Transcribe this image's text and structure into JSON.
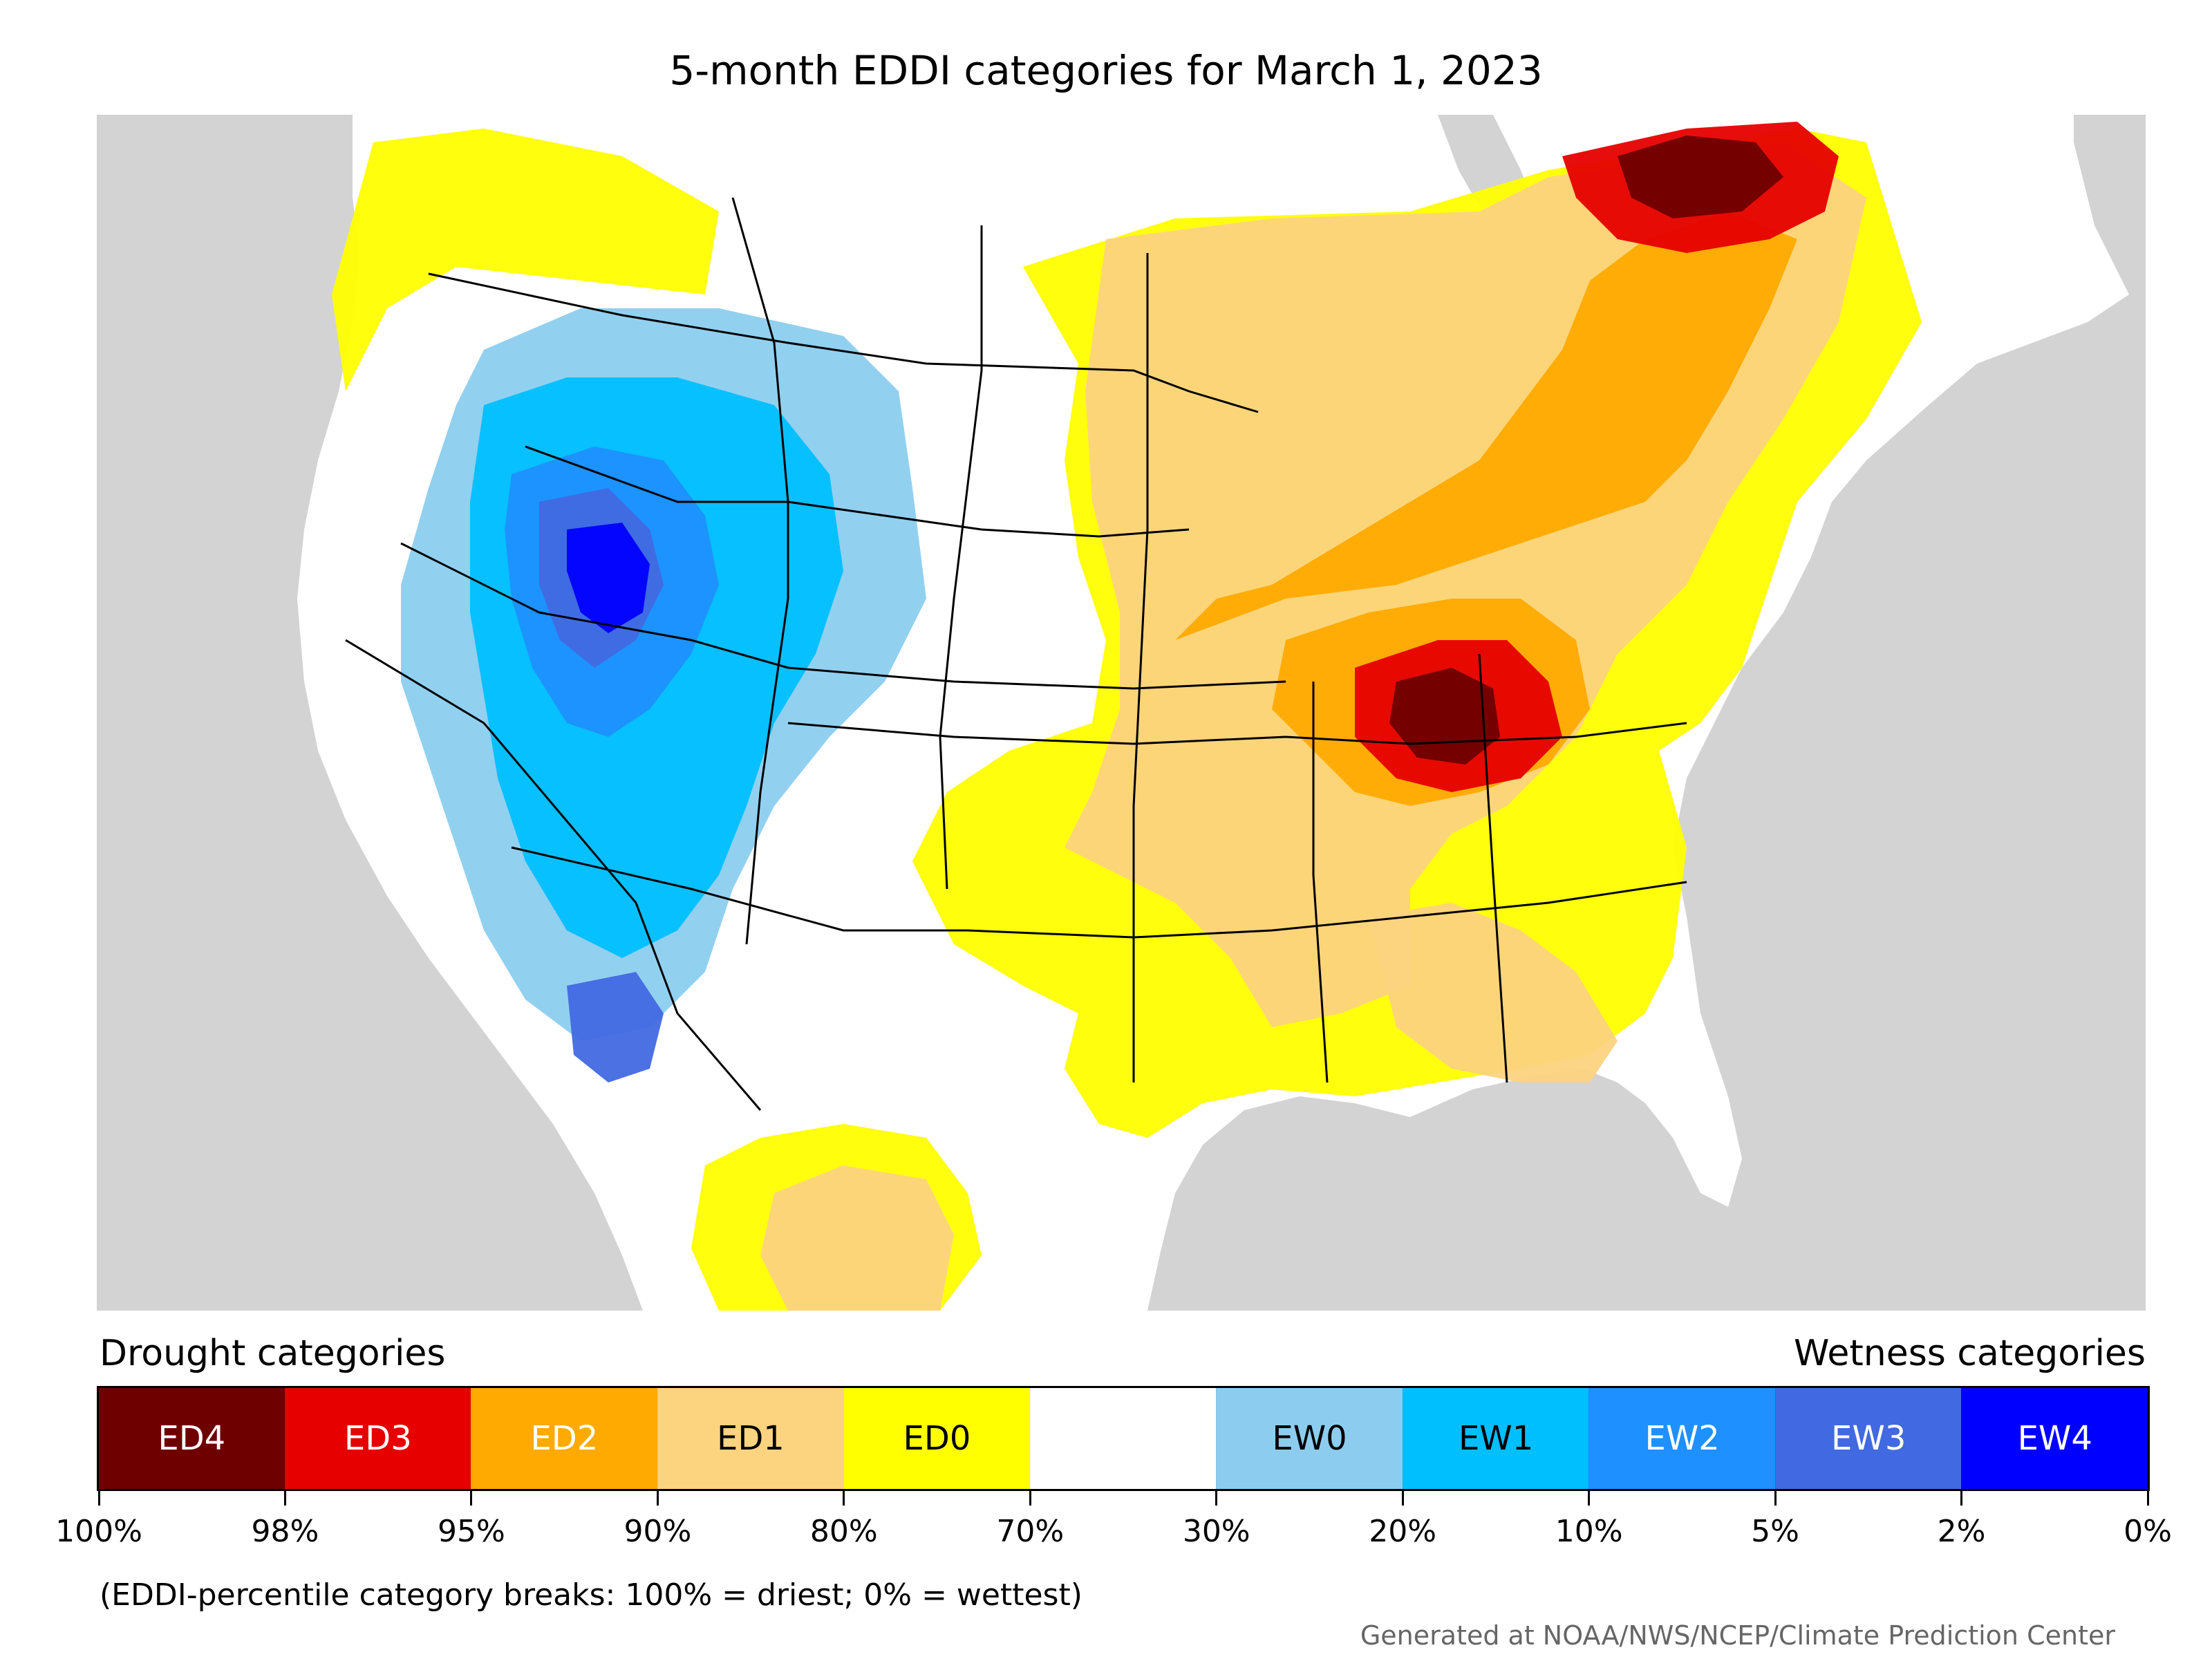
{
  "title": "5-month EDDI categories for March 1, 2023",
  "legend": {
    "drought_heading": "Drought categories",
    "wetness_heading": "Wetness categories",
    "categories": [
      {
        "label": "ED4",
        "color": "#6e0000",
        "text_color": "#ffffff"
      },
      {
        "label": "ED3",
        "color": "#e60000",
        "text_color": "#ffffff"
      },
      {
        "label": "ED2",
        "color": "#ffaa00",
        "text_color": "#ffffff"
      },
      {
        "label": "ED1",
        "color": "#fcd37f",
        "text_color": "#000000"
      },
      {
        "label": "ED0",
        "color": "#ffff00",
        "text_color": "#000000"
      },
      {
        "label": "",
        "color": "#ffffff",
        "text_color": "#000000"
      },
      {
        "label": "EW0",
        "color": "#8ccdef",
        "text_color": "#000000"
      },
      {
        "label": "EW1",
        "color": "#00bfff",
        "text_color": "#000000"
      },
      {
        "label": "EW2",
        "color": "#1e90ff",
        "text_color": "#ffffff"
      },
      {
        "label": "EW3",
        "color": "#4169e1",
        "text_color": "#ffffff"
      },
      {
        "label": "EW4",
        "color": "#0000ff",
        "text_color": "#ffffff"
      }
    ],
    "breaks": [
      "100%",
      "98%",
      "95%",
      "90%",
      "80%",
      "70%",
      "30%",
      "20%",
      "10%",
      "5%",
      "2%",
      "0%"
    ],
    "note": "(EDDI-percentile category breaks: 100% = driest; 0% = wettest)"
  },
  "credit": "Generated at NOAA/NWS/NCEP/Climate Prediction Center",
  "map": {
    "ocean_color": "#d3d3d3",
    "land_color": "#ffffff",
    "boundary_color": "#000000"
  }
}
